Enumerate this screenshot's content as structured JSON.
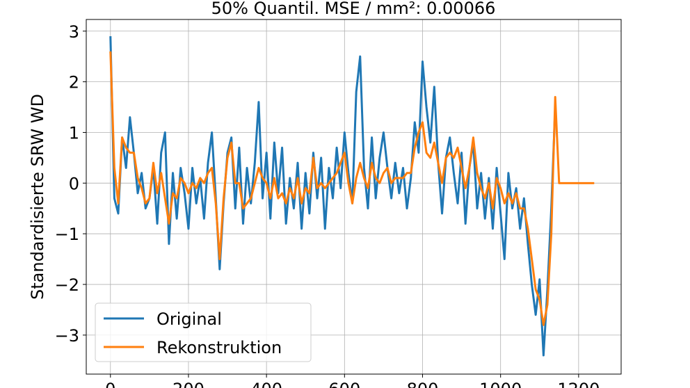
{
  "chart_data": {
    "type": "line",
    "title": "50% Quantil. MSE / mm²: 0.00066",
    "y_label": "Standardisierte SRW WD",
    "x": [
      0,
      10,
      20,
      30,
      40,
      50,
      60,
      70,
      80,
      90,
      100,
      110,
      120,
      130,
      140,
      150,
      160,
      170,
      180,
      190,
      200,
      210,
      220,
      230,
      240,
      250,
      260,
      270,
      280,
      290,
      300,
      310,
      320,
      330,
      340,
      350,
      360,
      370,
      380,
      390,
      400,
      410,
      420,
      430,
      440,
      450,
      460,
      470,
      480,
      490,
      500,
      510,
      520,
      530,
      540,
      550,
      560,
      570,
      580,
      590,
      600,
      610,
      620,
      630,
      640,
      650,
      660,
      670,
      680,
      690,
      700,
      710,
      720,
      730,
      740,
      750,
      760,
      770,
      780,
      790,
      800,
      810,
      820,
      830,
      840,
      850,
      860,
      870,
      880,
      890,
      900,
      910,
      920,
      930,
      940,
      950,
      960,
      970,
      980,
      990,
      1000,
      1010,
      1020,
      1030,
      1040,
      1050,
      1060,
      1070,
      1080,
      1090,
      1100,
      1110,
      1120,
      1130,
      1140,
      1150,
      1160,
      1170,
      1180,
      1190,
      1200,
      1210,
      1220,
      1230,
      1240
    ],
    "series": [
      {
        "name": "Original",
        "color": "#1f77b4",
        "values": [
          2.9,
          -0.3,
          -0.6,
          0.9,
          0.3,
          1.3,
          0.6,
          -0.2,
          0.2,
          -0.5,
          -0.3,
          0.3,
          -0.8,
          0.6,
          1.0,
          -1.2,
          0.2,
          -0.7,
          0.3,
          -0.2,
          -0.9,
          0.3,
          -0.4,
          0.1,
          -0.7,
          0.4,
          1.0,
          -0.3,
          -1.7,
          -0.4,
          0.6,
          0.9,
          -0.5,
          0.7,
          -0.8,
          0.3,
          -0.4,
          0.4,
          1.6,
          -0.3,
          0.6,
          -0.7,
          0.8,
          -0.2,
          0.7,
          -0.8,
          0.1,
          -0.5,
          0.4,
          -0.9,
          0.2,
          -0.6,
          0.6,
          -0.3,
          0.5,
          -0.9,
          0.3,
          -0.3,
          0.7,
          -0.1,
          1.0,
          0.2,
          -0.4,
          1.8,
          2.5,
          0.3,
          -0.5,
          0.9,
          -0.3,
          0.5,
          1.0,
          0.3,
          -0.3,
          0.4,
          -0.2,
          0.3,
          -0.5,
          0.1,
          1.2,
          0.6,
          2.4,
          1.5,
          0.8,
          1.9,
          0.4,
          -0.6,
          0.5,
          0.9,
          0.2,
          -0.4,
          0.6,
          -0.8,
          0.3,
          0.8,
          -0.5,
          0.2,
          -0.7,
          0.1,
          -0.9,
          0.3,
          -0.6,
          -1.5,
          0.2,
          -0.5,
          -0.1,
          -0.9,
          -0.3,
          -1.2,
          -2.0,
          -2.6,
          -1.9,
          -3.4,
          -2.1,
          -0.5,
          1.5,
          null,
          null,
          null,
          null,
          null,
          null,
          null,
          null,
          null,
          null
        ]
      },
      {
        "name": "Rekonstruktion",
        "color": "#ff7f0e",
        "values": [
          2.6,
          0.3,
          -0.4,
          0.9,
          0.7,
          0.6,
          0.6,
          0.1,
          -0.1,
          -0.4,
          -0.3,
          0.4,
          -0.2,
          0.2,
          -0.3,
          -0.8,
          -0.2,
          -0.3,
          0.1,
          0.0,
          -0.2,
          0.0,
          -0.1,
          0.1,
          0.0,
          0.2,
          0.3,
          -0.4,
          -1.5,
          -0.3,
          0.5,
          0.8,
          0.0,
          0.0,
          -0.5,
          -0.4,
          -0.3,
          0.0,
          0.3,
          0.1,
          0.0,
          -0.3,
          0.1,
          -0.3,
          -0.2,
          -0.4,
          -0.1,
          -0.3,
          0.1,
          -0.4,
          -0.1,
          -0.2,
          0.5,
          -0.1,
          0.0,
          -0.1,
          0.0,
          0.1,
          0.2,
          0.4,
          0.6,
          0.0,
          -0.4,
          0.1,
          0.4,
          0.1,
          -0.1,
          0.4,
          0.1,
          0.0,
          0.2,
          0.3,
          0.0,
          0.1,
          0.1,
          0.1,
          0.2,
          0.2,
          0.7,
          1.0,
          1.2,
          0.6,
          0.5,
          0.8,
          0.4,
          0.0,
          0.5,
          0.6,
          0.5,
          0.7,
          0.3,
          -0.1,
          0.3,
          0.9,
          0.2,
          -0.1,
          -0.3,
          0.0,
          -0.5,
          0.1,
          -0.1,
          -0.4,
          -0.2,
          -0.4,
          -0.2,
          -0.5,
          -0.5,
          -0.9,
          -1.5,
          -2.1,
          -2.3,
          -2.8,
          -2.4,
          -1.0,
          1.7,
          0,
          0,
          0,
          0,
          0,
          0,
          0,
          0,
          0,
          0
        ]
      }
    ],
    "xlim": [
      -62,
      1309
    ],
    "ylim": [
      -3.77,
      3.23
    ],
    "xticks": [
      0,
      200,
      400,
      600,
      800,
      1000,
      1200
    ],
    "yticks": [
      {
        "value": -3,
        "label": "−3"
      },
      {
        "value": -2,
        "label": "−2"
      },
      {
        "value": -1,
        "label": "−1"
      },
      0,
      1,
      2,
      3
    ],
    "grid": true,
    "legend": "lower left"
  }
}
